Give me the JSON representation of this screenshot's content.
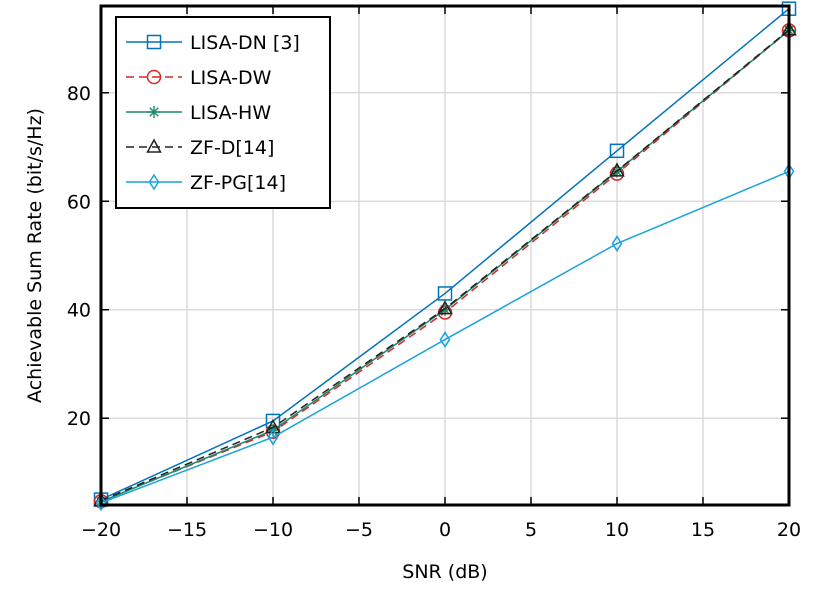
{
  "chart_data": {
    "type": "line",
    "title": "",
    "xlabel": "SNR (dB)",
    "ylabel": "Achievable Sum Rate (bit/s/Hz)",
    "xlim": [
      -20,
      20
    ],
    "ylim": [
      4,
      96
    ],
    "x": [
      -20,
      -10,
      0,
      10,
      20
    ],
    "xticks": [
      -20,
      -15,
      -10,
      -5,
      0,
      5,
      10,
      15,
      20
    ],
    "xtick_labels": [
      "−20",
      "−15",
      "−10",
      "−5",
      "0",
      "5",
      "10",
      "15",
      "20"
    ],
    "yticks": [
      20,
      40,
      60,
      80
    ],
    "ytick_labels": [
      "20",
      "40",
      "60",
      "80"
    ],
    "grid": true,
    "legend_position": "top-left",
    "series": [
      {
        "name": "LISA-DN [3]",
        "values": [
          5.0,
          19.5,
          43.0,
          69.3,
          95.5
        ],
        "color": "#0072BD",
        "marker": "square",
        "dash": "solid"
      },
      {
        "name": "LISA-DW",
        "values": [
          4.7,
          17.5,
          39.5,
          65.1,
          91.5
        ],
        "color": "#D62728",
        "marker": "circle",
        "dash": "dashed"
      },
      {
        "name": "LISA-HW",
        "values": [
          4.6,
          17.8,
          40.0,
          65.5,
          91.5
        ],
        "color": "#1A8A6A",
        "marker": "star",
        "dash": "solid"
      },
      {
        "name": "ZF-D[14]",
        "values": [
          4.8,
          18.3,
          40.2,
          65.6,
          91.6
        ],
        "color": "#222222",
        "marker": "triangle",
        "dash": "dashed"
      },
      {
        "name": "ZF-PG[14]",
        "values": [
          4.4,
          16.5,
          34.5,
          52.2,
          65.5
        ],
        "color": "#1AA3DD",
        "marker": "diamond",
        "dash": "solid"
      }
    ]
  }
}
